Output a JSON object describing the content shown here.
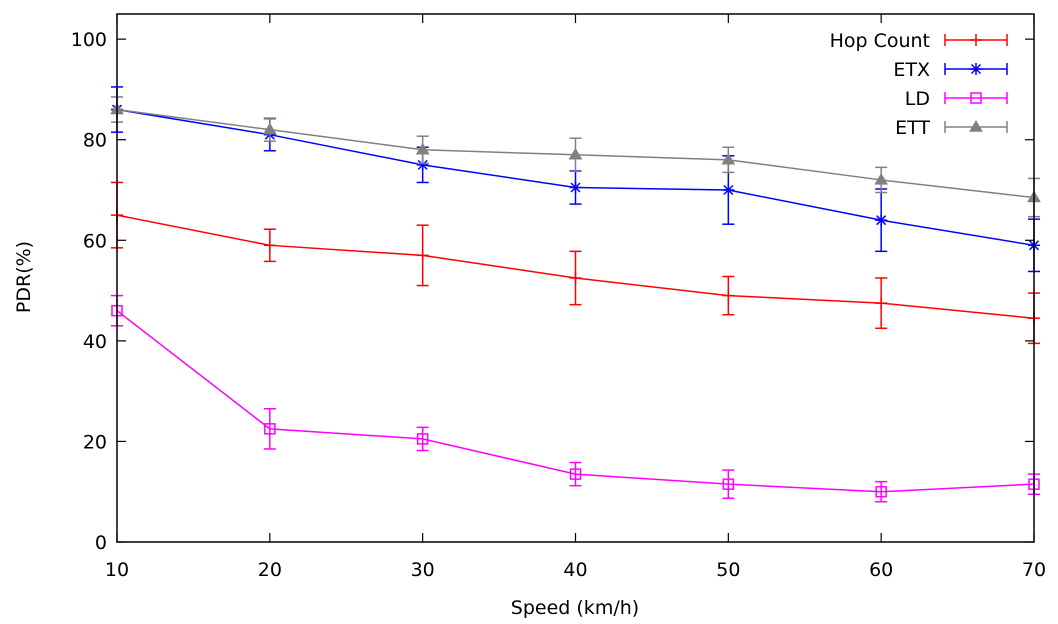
{
  "chart_data": {
    "type": "line",
    "title": "",
    "xlabel": "Speed (km/h)",
    "ylabel": "PDR(%)",
    "x": [
      10,
      20,
      30,
      40,
      50,
      60,
      70
    ],
    "xlim": [
      10,
      70
    ],
    "ylim": [
      0,
      105
    ],
    "xticks": [
      "10",
      "20",
      "30",
      "40",
      "50",
      "60",
      "70"
    ],
    "yticks": [
      "0",
      "20",
      "40",
      "60",
      "80",
      "100"
    ],
    "grid": false,
    "legend_position": "top-right",
    "series": [
      {
        "name": "Hop Count",
        "color": "#ff0000",
        "marker": "plus",
        "values": [
          65,
          59,
          57,
          52.5,
          49,
          47.5,
          44.5
        ],
        "errors": [
          6.5,
          3.2,
          6,
          5.3,
          3.8,
          5,
          5
        ]
      },
      {
        "name": "ETX",
        "color": "#0000ff",
        "marker": "star",
        "values": [
          86,
          81,
          75,
          70.5,
          70,
          64,
          59
        ],
        "errors": [
          4.5,
          3.2,
          3.5,
          3.3,
          6.8,
          6.2,
          5.2
        ]
      },
      {
        "name": "LD",
        "color": "#ff00ff",
        "marker": "open-square",
        "values": [
          46,
          22.5,
          20.5,
          13.5,
          11.5,
          10,
          11.5
        ],
        "errors": [
          3,
          4,
          2.3,
          2.3,
          2.8,
          2,
          2
        ]
      },
      {
        "name": "ETT",
        "color": "#808080",
        "marker": "filled-triangle",
        "values": [
          86,
          82,
          78,
          77,
          76,
          72,
          68.5
        ],
        "errors": [
          2.5,
          2.3,
          2.7,
          3.3,
          2.5,
          2.5,
          3.8
        ]
      }
    ]
  }
}
